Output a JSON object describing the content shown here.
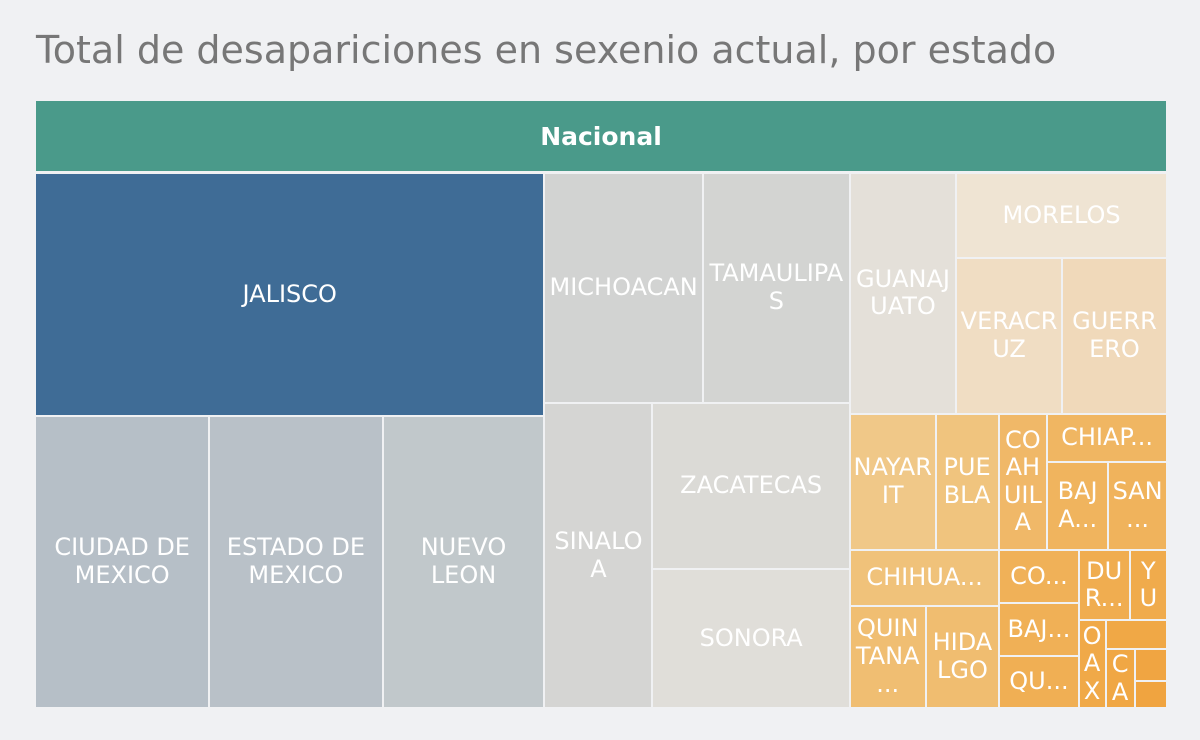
{
  "chart_data": {
    "type": "treemap",
    "title": "Total de desapariciones en sexenio actual, por estado",
    "root": "Nacional",
    "root_color": "#4a9a8a",
    "categories": [
      "JALISCO",
      "CIUDAD DE MEXICO",
      "ESTADO DE MEXICO",
      "NUEVO LEON",
      "MICHOACAN",
      "TAMAULIPAS",
      "SINALOA",
      "ZACATECAS",
      "SONORA",
      "GUANAJUATO",
      "MORELOS",
      "VERACRUZ",
      "GUERRERO",
      "NAYARIT",
      "PUEBLA",
      "CHIHUA...",
      "QUINTANA...",
      "HIDALGO",
      "COAHUILA",
      "CHIAP...",
      "BAJA...",
      "SAN...",
      "CO...",
      "BAJ...",
      "QU...",
      "DUR...",
      "YU",
      "OAX",
      null,
      "CA",
      null,
      null
    ],
    "values": [
      12000,
      4930,
      4900,
      4580,
      3530,
      3280,
      3190,
      3180,
      2650,
      2480,
      1730,
      1600,
      1590,
      1130,
      830,
      810,
      750,
      730,
      640,
      560,
      520,
      500,
      410,
      405,
      400,
      350,
      255,
      230,
      170,
      165,
      100,
      85
    ],
    "colors": [
      "#3f6c96",
      "#b6bfc7",
      "#b9c1c8",
      "#c1c8cb",
      "#d2d3d2",
      "#d3d4d2",
      "#d5d5d3",
      "#dbdad6",
      "#e0ded9",
      "#e4e0d9",
      "#efe4d3",
      "#f0ddc3",
      "#f0d9ba",
      "#f0c888",
      "#f0c47e",
      "#f0c27a",
      "#f0be72",
      "#f0bd70",
      "#f0b868",
      "#f0b662",
      "#f0b45e",
      "#f0b35c",
      "#f0b158",
      "#f0b056",
      "#f0af54",
      "#f0ad50",
      "#f0ab4c",
      "#f0a948",
      "#f0a846",
      "#f0a744",
      "#f0a542",
      "#f0a440"
    ]
  }
}
